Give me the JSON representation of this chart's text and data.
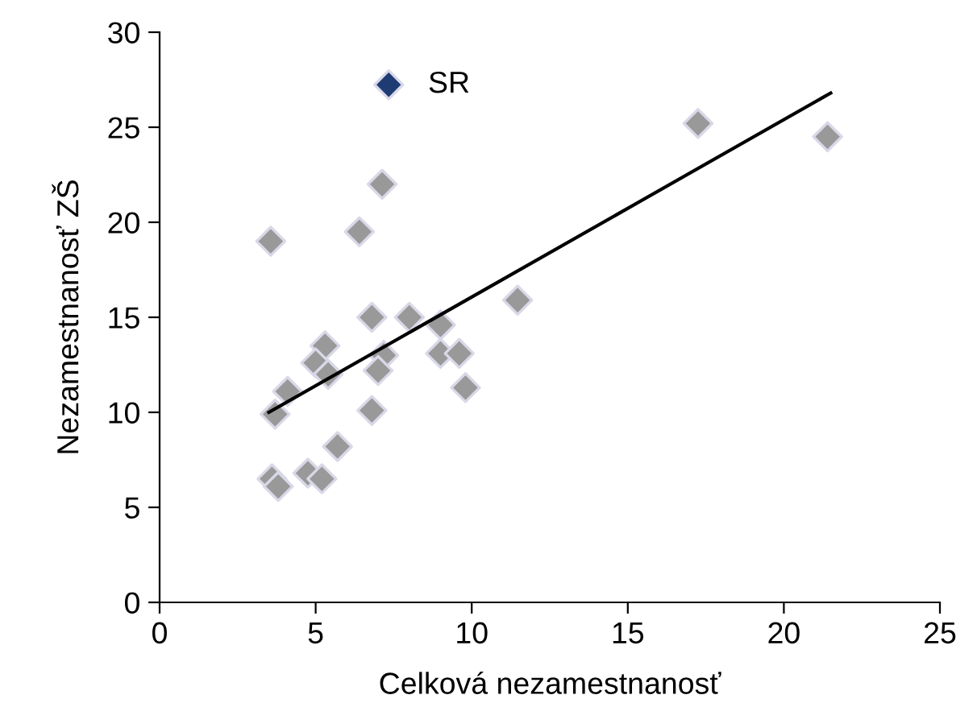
{
  "chart_data": {
    "type": "scatter",
    "xlabel": "Celková nezamestnanosť",
    "ylabel": "Nezamestnanosť ZŠ",
    "xlim": [
      0,
      25
    ],
    "xticks": [
      0,
      5,
      10,
      15,
      20,
      25
    ],
    "ylim": [
      0,
      30
    ],
    "yticks": [
      0,
      5,
      10,
      15,
      20,
      25,
      30
    ],
    "grid": false,
    "legend": "top",
    "marker": "diamond",
    "series": [
      {
        "color": "#999999",
        "x": [
          3.56,
          6.4,
          7.13,
          17.25,
          21.4,
          11.47,
          6.8,
          8.0,
          9.0,
          5.3,
          5.0,
          4.1,
          3.7,
          7.18,
          7.0,
          9.0,
          9.6,
          9.8,
          6.8,
          5.7,
          3.6,
          4.75,
          5.2,
          3.8,
          5.4
        ],
        "values": [
          19.0,
          19.5,
          22.0,
          25.2,
          24.5,
          15.9,
          15.0,
          15.0,
          14.6,
          13.5,
          12.6,
          11.1,
          9.9,
          13.0,
          12.2,
          13.1,
          13.1,
          11.3,
          10.1,
          8.2,
          6.5,
          6.8,
          6.5,
          6.1,
          12.0
        ]
      },
      {
        "name": "SR",
        "color": "#1f3b73"
      },
      {
        "type": "line",
        "color": "#000000",
        "marker": "none",
        "x": [
          3.5,
          21.5
        ],
        "values": [
          10.0,
          26.8
        ]
      }
    ]
  }
}
